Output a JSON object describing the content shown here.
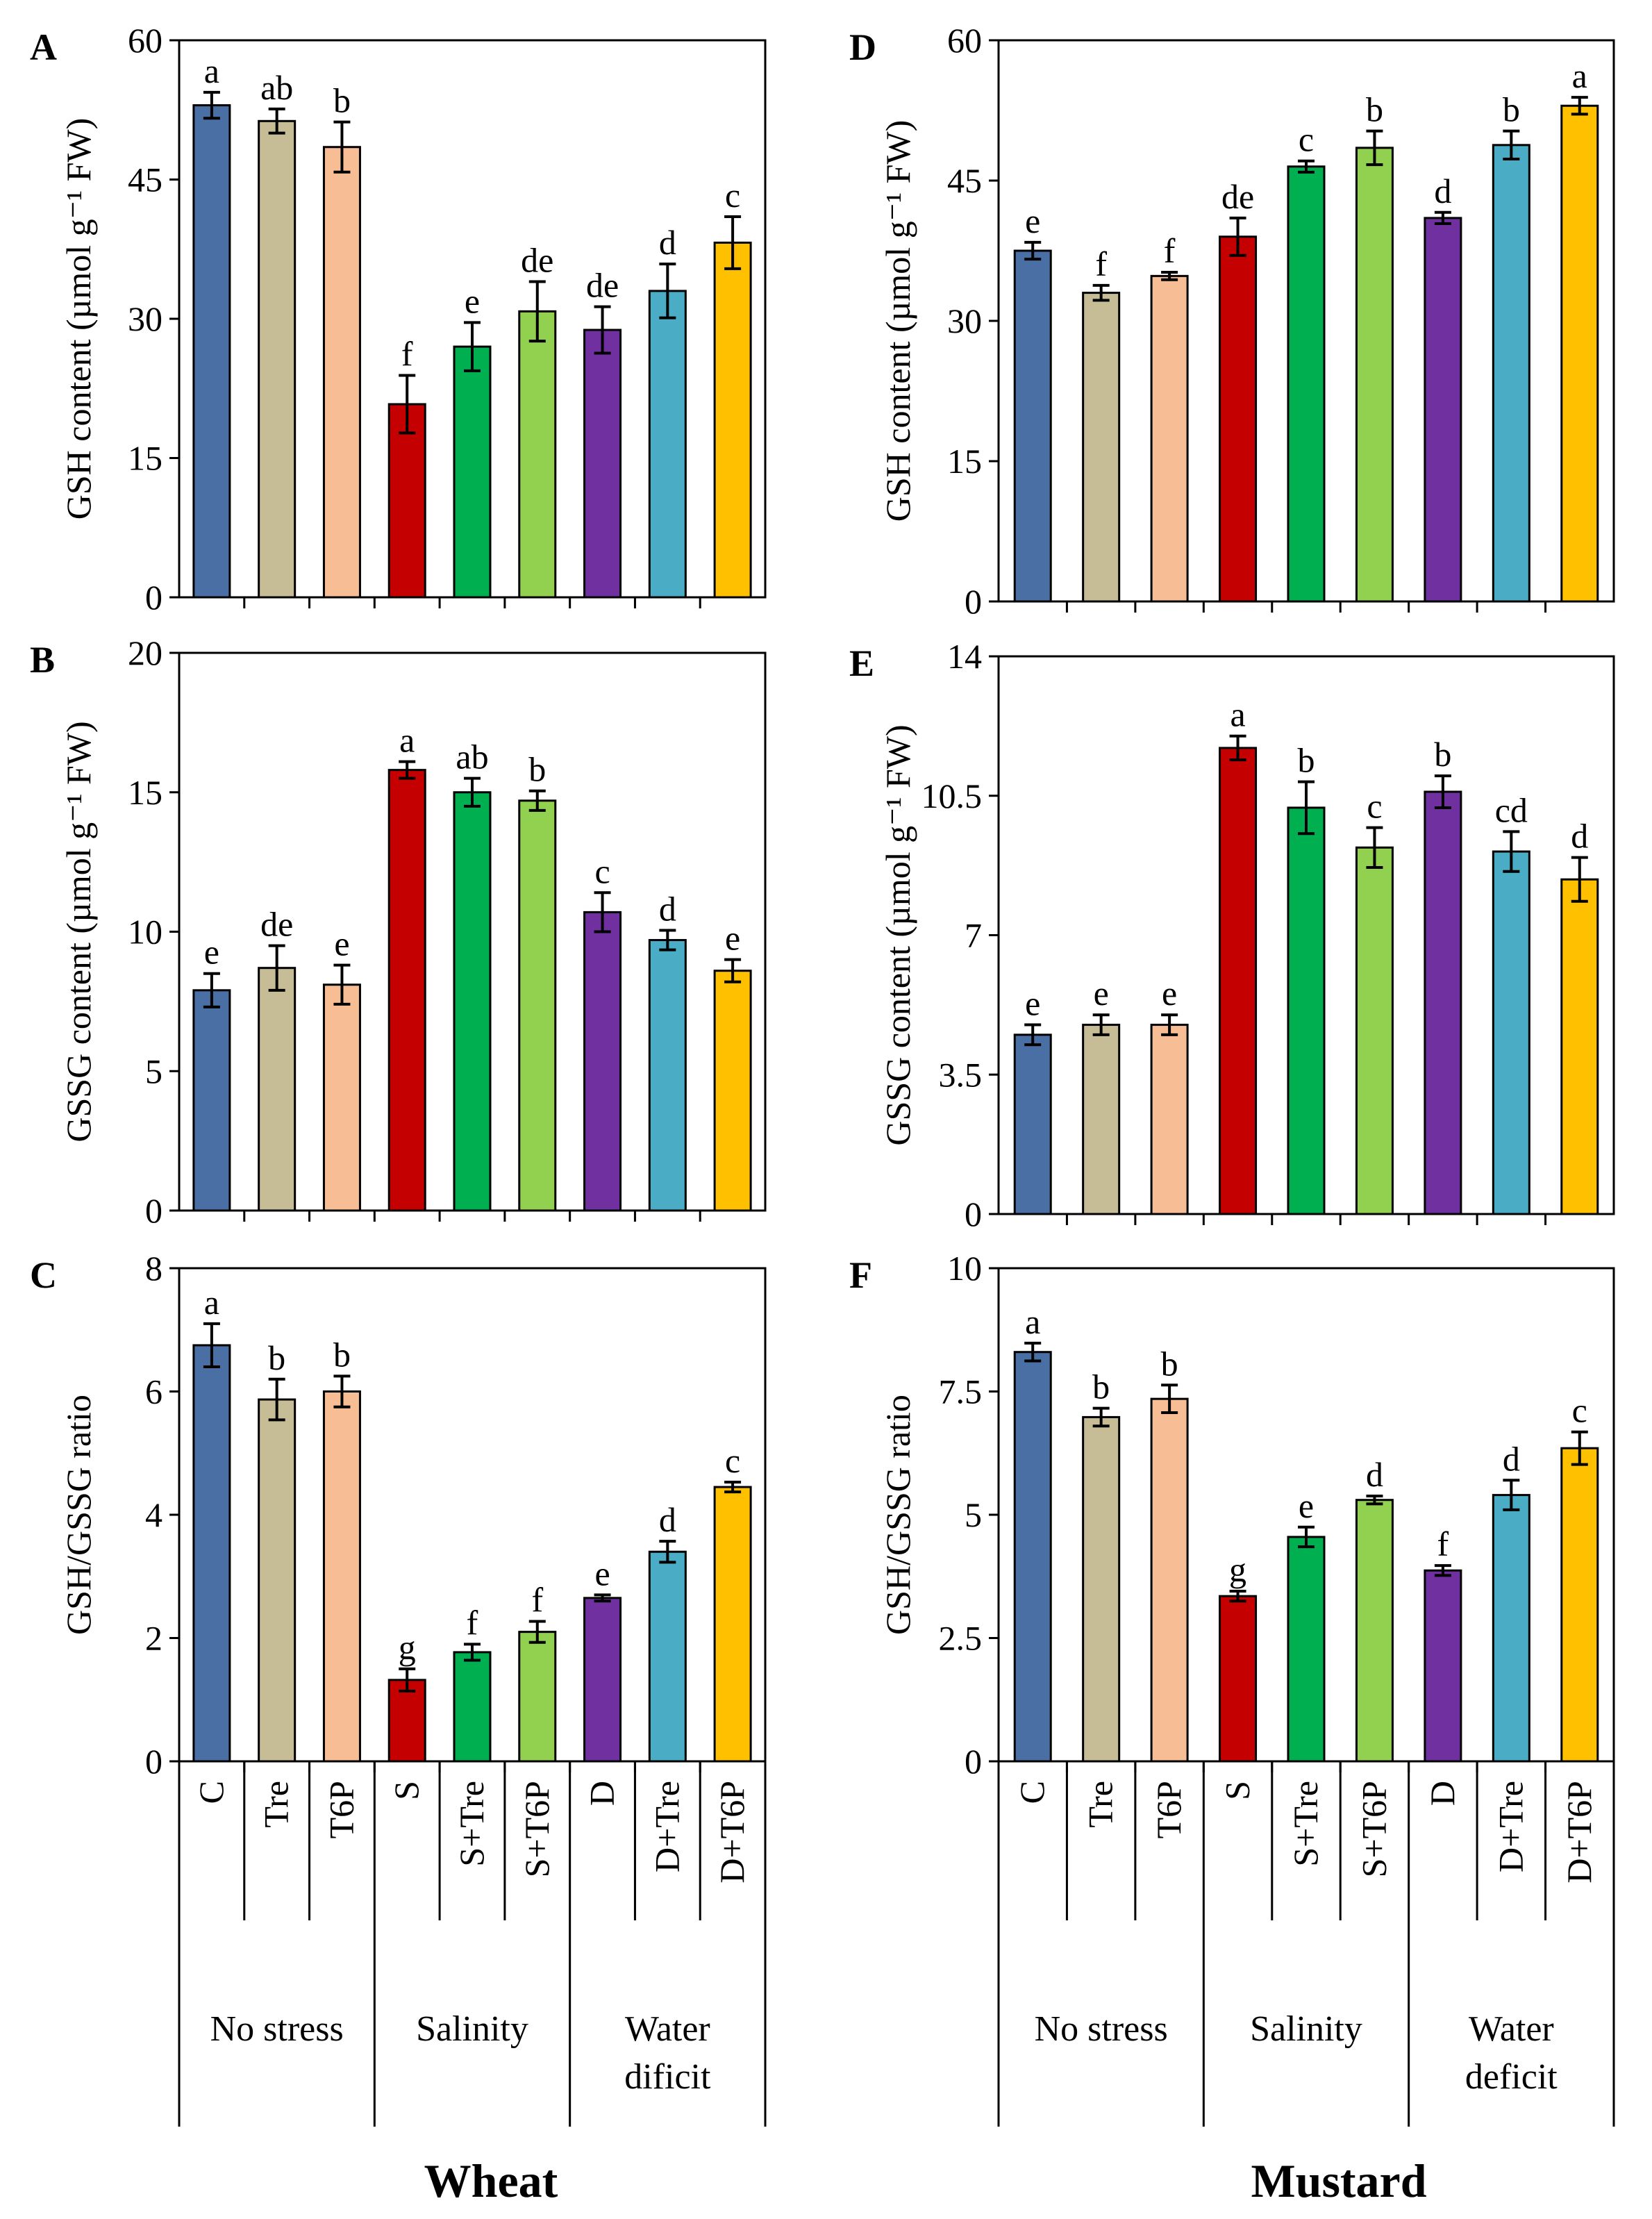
{
  "figure": {
    "species": [
      "Wheat",
      "Mustard"
    ]
  },
  "colors": [
    "#4a6fa5",
    "#c6bd97",
    "#f7bd95",
    "#c40000",
    "#00b050",
    "#92d050",
    "#7030a0",
    "#4bacc6",
    "#ffc000"
  ],
  "chart_data": [
    {
      "id": "A",
      "type": "bar",
      "panel_label": "A",
      "species": "Wheat",
      "ylabel": "GSH content (µmol g⁻¹ FW)",
      "ylim": [
        0,
        60
      ],
      "yticks": [
        "0",
        "15",
        "30",
        "45",
        "60"
      ],
      "categories": [
        "C",
        "Tre",
        "T6P",
        "S",
        "S+Tre",
        "S+T6P",
        "D",
        "D+Tre",
        "D+T6P"
      ],
      "values": [
        53.0,
        51.3,
        48.5,
        20.8,
        27.0,
        30.8,
        28.8,
        33.0,
        38.2
      ],
      "errors": [
        1.4,
        1.3,
        2.7,
        3.1,
        2.6,
        3.2,
        2.5,
        2.9,
        2.8
      ],
      "letters": [
        "a",
        "ab",
        "b",
        "f",
        "e",
        "de",
        "de",
        "d",
        "c"
      ]
    },
    {
      "id": "B",
      "type": "bar",
      "panel_label": "B",
      "species": "Wheat",
      "ylabel": "GSSG content (µmol g⁻¹ FW)",
      "ylim": [
        0,
        20
      ],
      "yticks": [
        "0",
        "5",
        "10",
        "15",
        "20"
      ],
      "categories": [
        "C",
        "Tre",
        "T6P",
        "S",
        "S+Tre",
        "S+T6P",
        "D",
        "D+Tre",
        "D+T6P"
      ],
      "values": [
        7.9,
        8.7,
        8.1,
        15.8,
        15.0,
        14.7,
        10.7,
        9.7,
        8.6
      ],
      "errors": [
        0.6,
        0.8,
        0.7,
        0.3,
        0.5,
        0.35,
        0.7,
        0.35,
        0.4
      ],
      "letters": [
        "e",
        "de",
        "e",
        "a",
        "ab",
        "b",
        "c",
        "d",
        "e"
      ]
    },
    {
      "id": "C",
      "type": "bar",
      "panel_label": "C",
      "species": "Wheat",
      "ylabel": "GSH/GSSG ratio",
      "ylim": [
        0,
        8
      ],
      "yticks": [
        "0",
        "2",
        "4",
        "6",
        "8"
      ],
      "categories": [
        "C",
        "Tre",
        "T6P",
        "S",
        "S+Tre",
        "S+T6P",
        "D",
        "D+Tre",
        "D+T6P"
      ],
      "values": [
        6.75,
        5.87,
        6.0,
        1.32,
        1.77,
        2.1,
        2.65,
        3.4,
        4.45
      ],
      "errors": [
        0.35,
        0.33,
        0.25,
        0.18,
        0.13,
        0.17,
        0.05,
        0.17,
        0.08
      ],
      "letters": [
        "a",
        "b",
        "b",
        "g",
        "f",
        "f",
        "e",
        "d",
        "c"
      ]
    },
    {
      "id": "D",
      "type": "bar",
      "panel_label": "D",
      "species": "Mustard",
      "ylabel": "GSH content (µmol g⁻¹ FW)",
      "ylim": [
        0,
        60
      ],
      "yticks": [
        "0",
        "15",
        "30",
        "45",
        "60"
      ],
      "categories": [
        "C",
        "Tre",
        "T6P",
        "S",
        "S+Tre",
        "S+T6P",
        "D",
        "D+Tre",
        "D+T6P"
      ],
      "values": [
        37.5,
        33.0,
        34.8,
        39.0,
        46.5,
        48.5,
        41.0,
        48.8,
        53.0
      ],
      "errors": [
        0.9,
        0.8,
        0.4,
        2.0,
        0.6,
        1.8,
        0.6,
        1.5,
        0.9
      ],
      "letters": [
        "e",
        "f",
        "f",
        "de",
        "c",
        "b",
        "d",
        "b",
        "a"
      ]
    },
    {
      "id": "E",
      "type": "bar",
      "panel_label": "E",
      "species": "Mustard",
      "ylabel": "GSSG content (µmol g⁻¹ FW)",
      "ylim": [
        0,
        14
      ],
      "yticks": [
        "0",
        "3.5",
        "7",
        "10.5",
        "14"
      ],
      "categories": [
        "C",
        "Tre",
        "T6P",
        "S",
        "S+Tre",
        "S+T6P",
        "D",
        "D+Tre",
        "D+T6P"
      ],
      "values": [
        4.5,
        4.75,
        4.75,
        11.7,
        10.2,
        9.2,
        10.6,
        9.1,
        8.4
      ],
      "errors": [
        0.25,
        0.25,
        0.25,
        0.3,
        0.65,
        0.5,
        0.4,
        0.5,
        0.55
      ],
      "letters": [
        "e",
        "e",
        "e",
        "a",
        "b",
        "c",
        "b",
        "cd",
        "d"
      ]
    },
    {
      "id": "F",
      "type": "bar",
      "panel_label": "F",
      "species": "Mustard",
      "ylabel": "GSH/GSSG ratio",
      "ylim": [
        0,
        10
      ],
      "yticks": [
        "0",
        "2.5",
        "5",
        "7.5",
        "10"
      ],
      "categories": [
        "C",
        "Tre",
        "T6P",
        "S",
        "S+Tre",
        "S+T6P",
        "D",
        "D+Tre",
        "D+T6P"
      ],
      "values": [
        8.3,
        6.98,
        7.35,
        3.35,
        4.55,
        5.3,
        3.87,
        5.4,
        6.35
      ],
      "errors": [
        0.18,
        0.18,
        0.28,
        0.1,
        0.2,
        0.08,
        0.1,
        0.3,
        0.33
      ],
      "letters": [
        "a",
        "b",
        "b",
        "g",
        "e",
        "d",
        "f",
        "d",
        "c"
      ]
    }
  ],
  "x_groups": {
    "Wheat": [
      {
        "lines": [
          "No stress"
        ]
      },
      {
        "lines": [
          "Salinity"
        ]
      },
      {
        "lines": [
          "Water",
          "dificit"
        ]
      }
    ],
    "Mustard": [
      {
        "lines": [
          "No stress"
        ]
      },
      {
        "lines": [
          "Salinity"
        ]
      },
      {
        "lines": [
          "Water",
          "deficit"
        ]
      }
    ]
  }
}
